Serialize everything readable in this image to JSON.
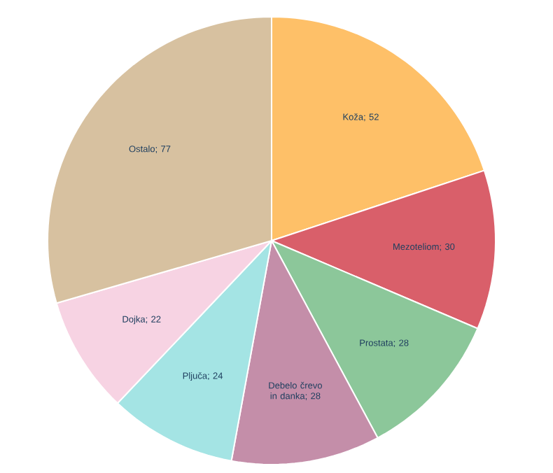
{
  "chart_data": {
    "type": "pie",
    "categories": [
      "Koža",
      "Mezoteliom",
      "Prostata",
      "Debelo črevo in danka",
      "Pljuča",
      "Dojka",
      "Ostalo"
    ],
    "values": [
      52,
      30,
      28,
      28,
      24,
      22,
      77
    ],
    "colors": [
      "#fec068",
      "#d95f6a",
      "#8cc79a",
      "#c48ea9",
      "#a4e4e4",
      "#f7d3e3",
      "#d7c1a0"
    ],
    "value_labels": [
      "; 52",
      "; 30",
      "; 28",
      "; 28",
      "; 24",
      "; 22",
      "; 77"
    ],
    "legend": false
  }
}
